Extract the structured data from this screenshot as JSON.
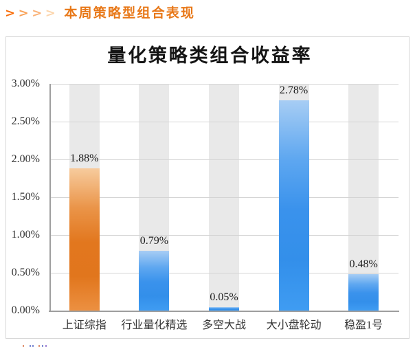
{
  "header": {
    "title": "本周策略型组合表现",
    "title_color": "#e87818",
    "chevrons": [
      {
        "glyph": ">",
        "color": "#f96c08"
      },
      {
        "glyph": ">",
        "color": "#f9a156"
      },
      {
        "glyph": ">",
        "color": "#fab176"
      },
      {
        "glyph": ">",
        "color": "#fcd5ac"
      }
    ]
  },
  "chart_data": {
    "type": "bar",
    "title": "量化策略类组合收益率",
    "categories": [
      "上证综指",
      "行业量化精选",
      "多空大战",
      "大小盘轮动",
      "稳盈1号"
    ],
    "values": [
      1.88,
      0.79,
      0.05,
      2.78,
      0.48
    ],
    "data_labels": [
      "1.88%",
      "0.79%",
      "0.05%",
      "2.78%",
      "0.48%"
    ],
    "xlabel": "",
    "ylabel": "",
    "ylim": [
      0,
      3
    ],
    "ytick_step": 0.5,
    "ytick_labels": [
      "0.00%",
      "0.50%",
      "1.00%",
      "1.50%",
      "2.00%",
      "2.50%",
      "3.00%"
    ],
    "grid": true,
    "legend": false,
    "bar_palette": [
      "orange",
      "blue",
      "blue",
      "blue",
      "blue"
    ],
    "colors": {
      "orange_gradient": [
        "#f7cb9d",
        "#ea9448",
        "#e2771e",
        "#e1761d",
        "#ec9041"
      ],
      "blue_gradient": [
        "#a7cdf4",
        "#5ea7f0",
        "#3a92ec",
        "#338fea",
        "#3f9cf2"
      ],
      "background_column": "#e9e9e9",
      "gridline": "#d4d4d4",
      "axis_line": "#9e9e9e",
      "card_border": "#d6d6d6"
    }
  },
  "footer": {
    "sliver_marks": [
      {
        "x": 33,
        "w": 2,
        "color": "#d4693b"
      },
      {
        "x": 43,
        "w": 2,
        "color": "#4d5fc2"
      },
      {
        "x": 47,
        "w": 2,
        "color": "#4d5fc2"
      },
      {
        "x": 56,
        "w": 2,
        "color": "#d4693b"
      },
      {
        "x": 61,
        "w": 2,
        "color": "#4d5fc2"
      },
      {
        "x": 66,
        "w": 2,
        "color": "#7a55c4"
      }
    ]
  }
}
